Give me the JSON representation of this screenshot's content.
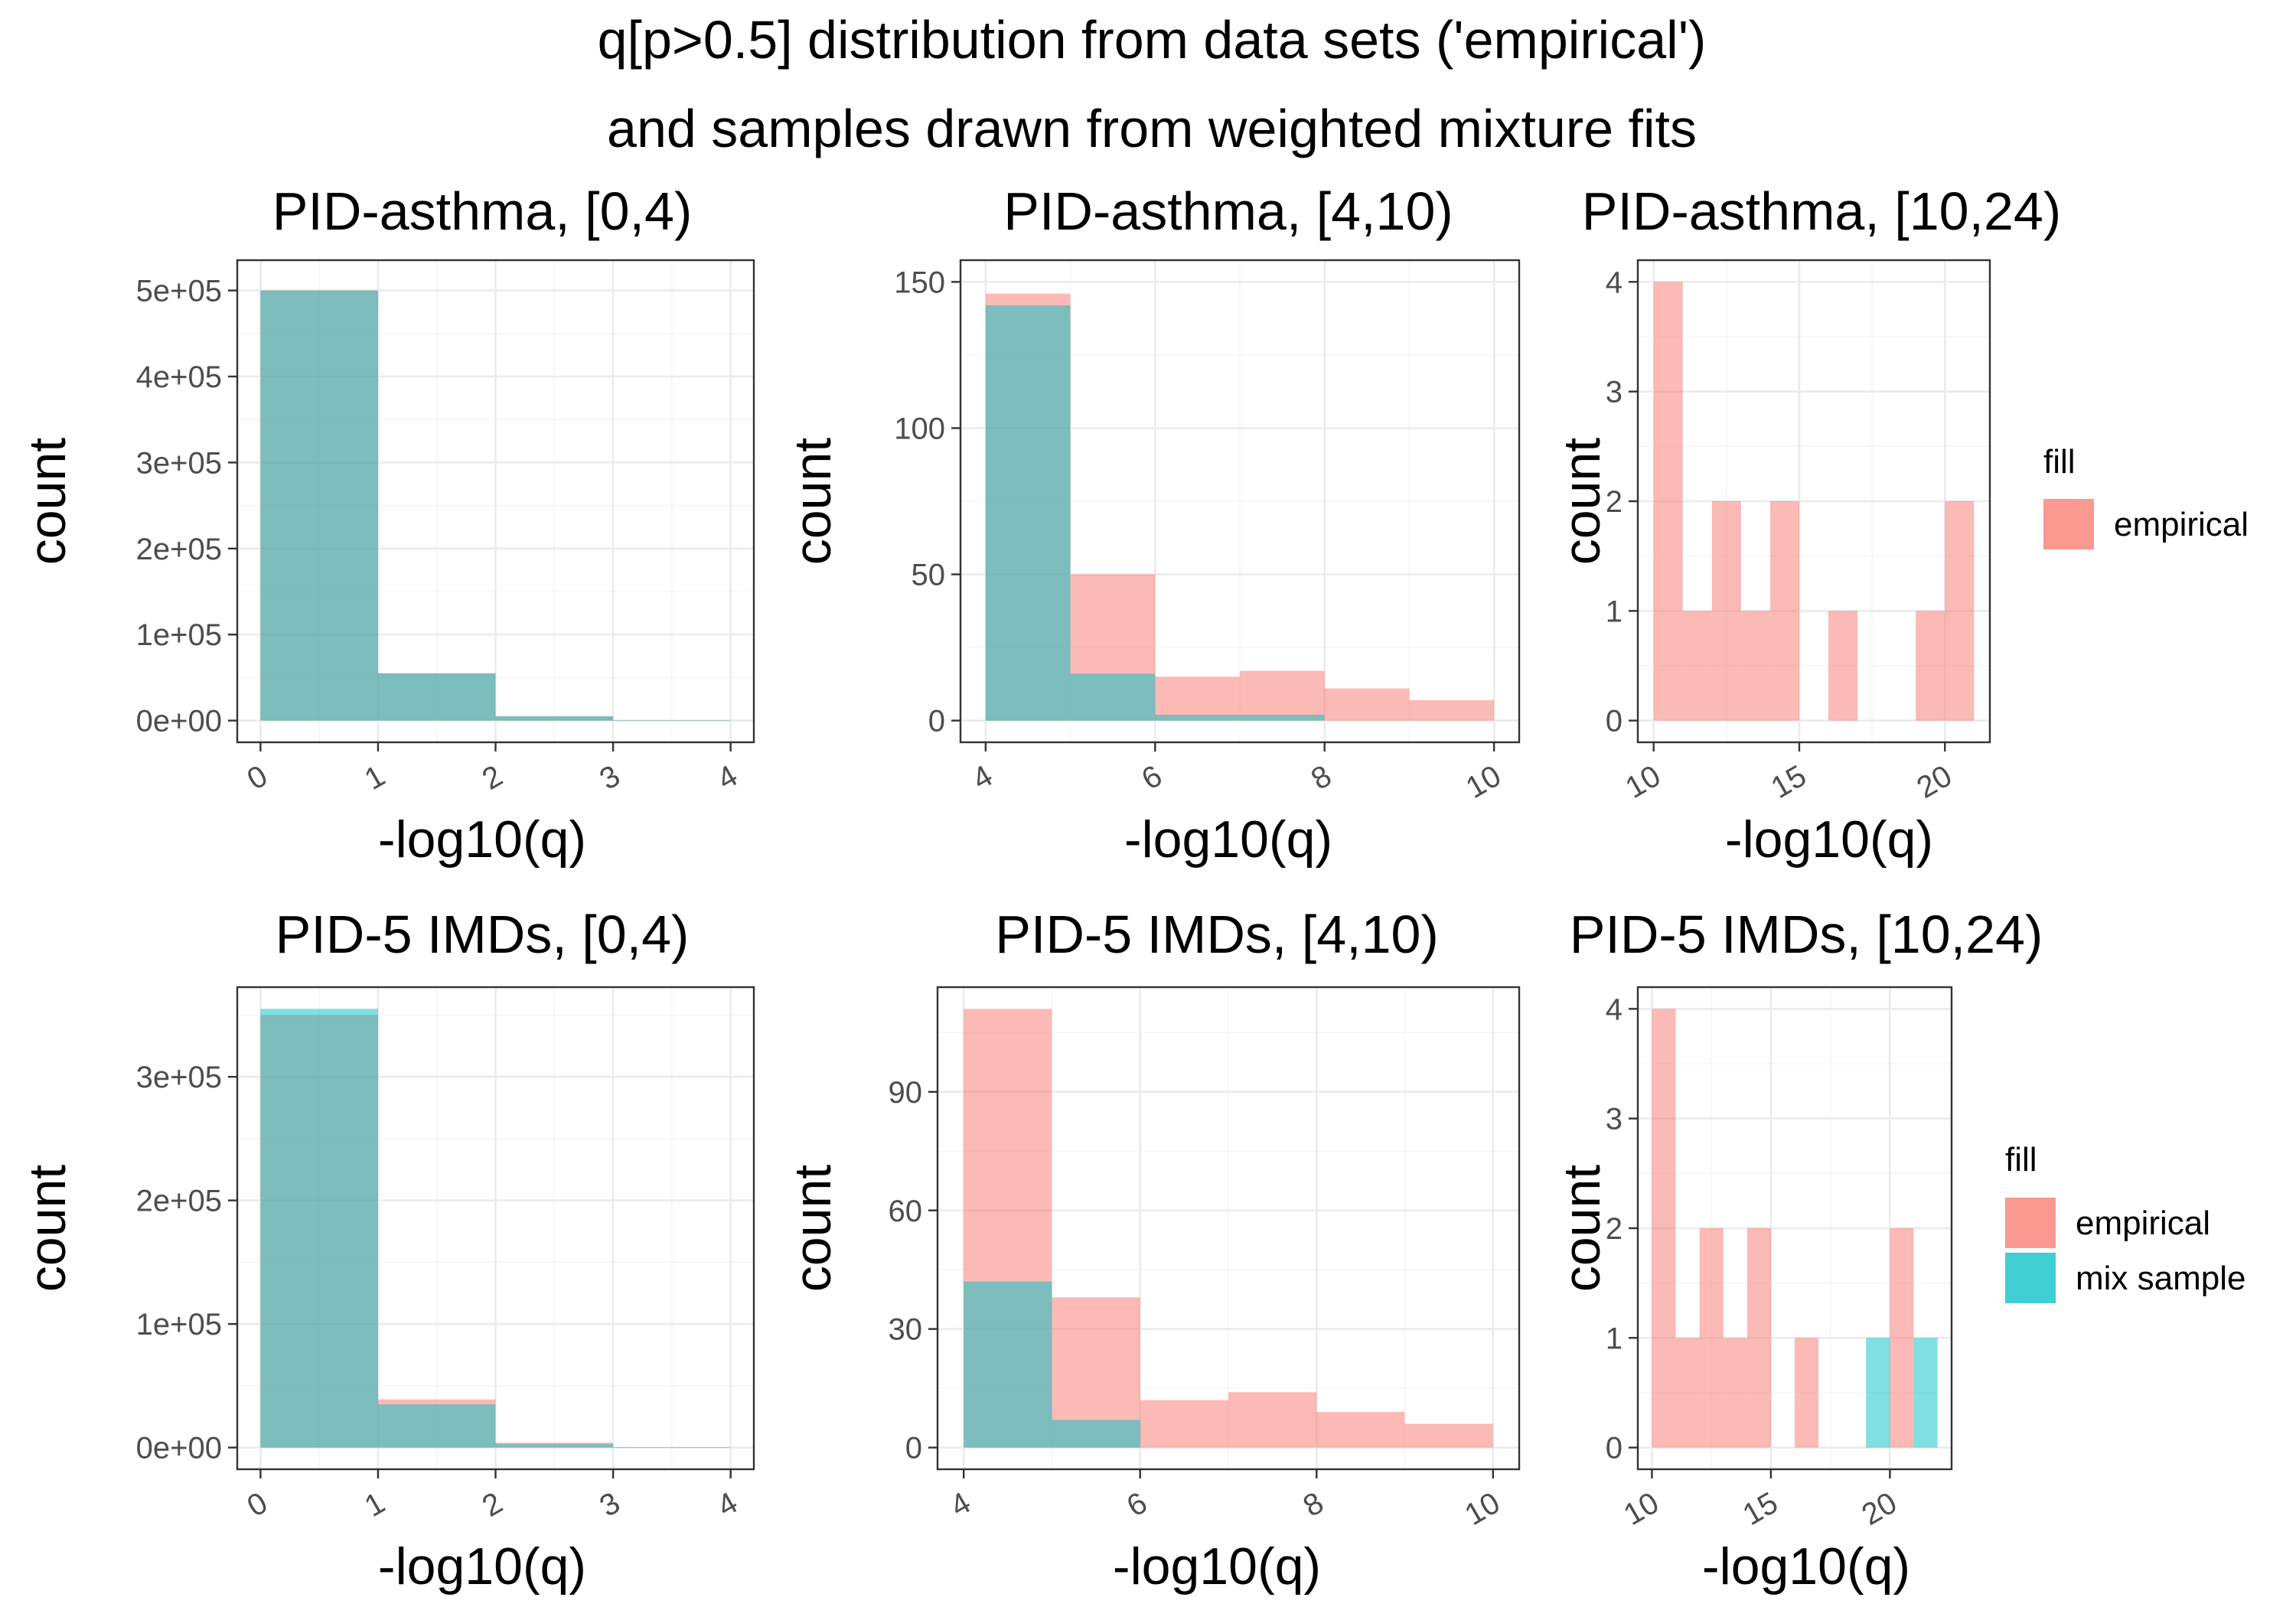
{
  "figure": {
    "title_line1": "q[p>0.5] distribution from data sets ('empirical')",
    "title_line2": "and samples drawn from weighted mixture fits"
  },
  "colors": {
    "empirical": "#f8766d",
    "mix_sample": "#00bfc4",
    "overlap": "#7fbcb9",
    "bar_alpha": 0.5
  },
  "legends": [
    {
      "title": "fill",
      "items": [
        {
          "label": "empirical",
          "color": "#f8766d"
        }
      ]
    },
    {
      "title": "fill",
      "items": [
        {
          "label": "empirical",
          "color": "#f8766d"
        },
        {
          "label": "mix sample",
          "color": "#00bfc4"
        }
      ]
    }
  ],
  "chart_data": [
    {
      "type": "bar",
      "title": "PID-asthma, [0,4)",
      "xlabel": "-log10(q)",
      "ylabel": "count",
      "xlim": [
        0,
        4
      ],
      "ylim": [
        0,
        510000
      ],
      "xticks": [
        0,
        1,
        2,
        3,
        4
      ],
      "xtick_labels": [
        "0",
        "1",
        "2",
        "3",
        "4"
      ],
      "yticks": [
        0,
        100000,
        200000,
        300000,
        400000,
        500000
      ],
      "ytick_labels": [
        "0e+00",
        "1e+05",
        "2e+05",
        "3e+05",
        "4e+05",
        "5e+05"
      ],
      "series": [
        {
          "name": "empirical",
          "bins": [
            [
              0,
              1,
              500000
            ],
            [
              1,
              2,
              55000
            ],
            [
              2,
              3,
              5000
            ],
            [
              3,
              4,
              500
            ]
          ]
        },
        {
          "name": "mix sample",
          "bins": [
            [
              0,
              1,
              500000
            ],
            [
              1,
              2,
              55000
            ],
            [
              2,
              3,
              5000
            ],
            [
              3,
              4,
              500
            ]
          ]
        }
      ]
    },
    {
      "type": "bar",
      "title": "PID-asthma, [4,10)",
      "xlabel": "-log10(q)",
      "ylabel": "count",
      "xlim": [
        4,
        10
      ],
      "ylim": [
        0,
        150
      ],
      "xticks": [
        4,
        6,
        8,
        10
      ],
      "xtick_labels": [
        "4",
        "6",
        "8",
        "10"
      ],
      "yticks": [
        0,
        50,
        100,
        150
      ],
      "ytick_labels": [
        "0",
        "50",
        "100",
        "150"
      ],
      "series": [
        {
          "name": "empirical",
          "bins": [
            [
              4,
              5,
              146
            ],
            [
              5,
              6,
              50
            ],
            [
              6,
              7,
              15
            ],
            [
              7,
              8,
              17
            ],
            [
              8,
              9,
              11
            ],
            [
              9,
              10,
              7
            ]
          ]
        },
        {
          "name": "mix sample",
          "bins": [
            [
              4,
              5,
              142
            ],
            [
              5,
              6,
              16
            ],
            [
              6,
              7,
              2
            ],
            [
              7,
              8,
              2
            ]
          ]
        }
      ]
    },
    {
      "type": "bar",
      "title": "PID-asthma, [10,24)",
      "xlabel": "-log10(q)",
      "ylabel": "count",
      "xlim": [
        10,
        21
      ],
      "ylim": [
        0,
        4
      ],
      "xticks": [
        10,
        15,
        20
      ],
      "xtick_labels": [
        "10",
        "15",
        "20"
      ],
      "yticks": [
        0,
        1,
        2,
        3,
        4
      ],
      "ytick_labels": [
        "0",
        "1",
        "2",
        "3",
        "4"
      ],
      "series": [
        {
          "name": "empirical",
          "bins": [
            [
              10,
              11,
              4
            ],
            [
              11,
              12,
              1
            ],
            [
              12,
              13,
              2
            ],
            [
              13,
              14,
              1
            ],
            [
              14,
              15,
              2
            ],
            [
              16,
              17,
              1
            ],
            [
              19,
              20,
              1
            ],
            [
              20,
              21,
              2
            ]
          ]
        }
      ]
    },
    {
      "type": "bar",
      "title": "PID-5 IMDs, [0,4)",
      "xlabel": "-log10(q)",
      "ylabel": "count",
      "xlim": [
        0,
        4
      ],
      "ylim": [
        0,
        355000
      ],
      "xticks": [
        0,
        1,
        2,
        3,
        4
      ],
      "xtick_labels": [
        "0",
        "1",
        "2",
        "3",
        "4"
      ],
      "yticks": [
        0,
        100000,
        200000,
        300000
      ],
      "ytick_labels": [
        "0e+00",
        "1e+05",
        "2e+05",
        "3e+05"
      ],
      "series": [
        {
          "name": "empirical",
          "bins": [
            [
              0,
              1,
              350000
            ],
            [
              1,
              2,
              39000
            ],
            [
              2,
              3,
              4000
            ],
            [
              3,
              4,
              400
            ]
          ]
        },
        {
          "name": "mix sample",
          "bins": [
            [
              0,
              1,
              355000
            ],
            [
              1,
              2,
              35000
            ],
            [
              2,
              3,
              3000
            ],
            [
              3,
              4,
              300
            ]
          ]
        }
      ]
    },
    {
      "type": "bar",
      "title": "PID-5 IMDs, [4,10)",
      "xlabel": "-log10(q)",
      "ylabel": "count",
      "xlim": [
        4,
        10
      ],
      "ylim": [
        0,
        111
      ],
      "xticks": [
        4,
        6,
        8,
        10
      ],
      "xtick_labels": [
        "4",
        "6",
        "8",
        "10"
      ],
      "yticks": [
        0,
        30,
        60,
        90
      ],
      "ytick_labels": [
        "0",
        "30",
        "60",
        "90"
      ],
      "series": [
        {
          "name": "empirical",
          "bins": [
            [
              4,
              5,
              111
            ],
            [
              5,
              6,
              38
            ],
            [
              6,
              7,
              12
            ],
            [
              7,
              8,
              14
            ],
            [
              8,
              9,
              9
            ],
            [
              9,
              10,
              6
            ]
          ]
        },
        {
          "name": "mix sample",
          "bins": [
            [
              4,
              5,
              42
            ],
            [
              5,
              6,
              7
            ]
          ]
        }
      ]
    },
    {
      "type": "bar",
      "title": "PID-5 IMDs, [10,24)",
      "xlabel": "-log10(q)",
      "ylabel": "count",
      "xlim": [
        10,
        22
      ],
      "ylim": [
        0,
        4
      ],
      "xticks": [
        10,
        15,
        20
      ],
      "xtick_labels": [
        "10",
        "15",
        "20"
      ],
      "yticks": [
        0,
        1,
        2,
        3,
        4
      ],
      "ytick_labels": [
        "0",
        "1",
        "2",
        "3",
        "4"
      ],
      "series": [
        {
          "name": "empirical",
          "bins": [
            [
              10,
              11,
              4
            ],
            [
              11,
              12,
              1
            ],
            [
              12,
              13,
              2
            ],
            [
              13,
              14,
              1
            ],
            [
              14,
              15,
              2
            ],
            [
              16,
              17,
              1
            ],
            [
              20,
              21,
              2
            ]
          ]
        },
        {
          "name": "mix sample",
          "bins": [
            [
              19,
              20,
              1
            ],
            [
              21,
              22,
              1
            ]
          ]
        }
      ]
    }
  ]
}
